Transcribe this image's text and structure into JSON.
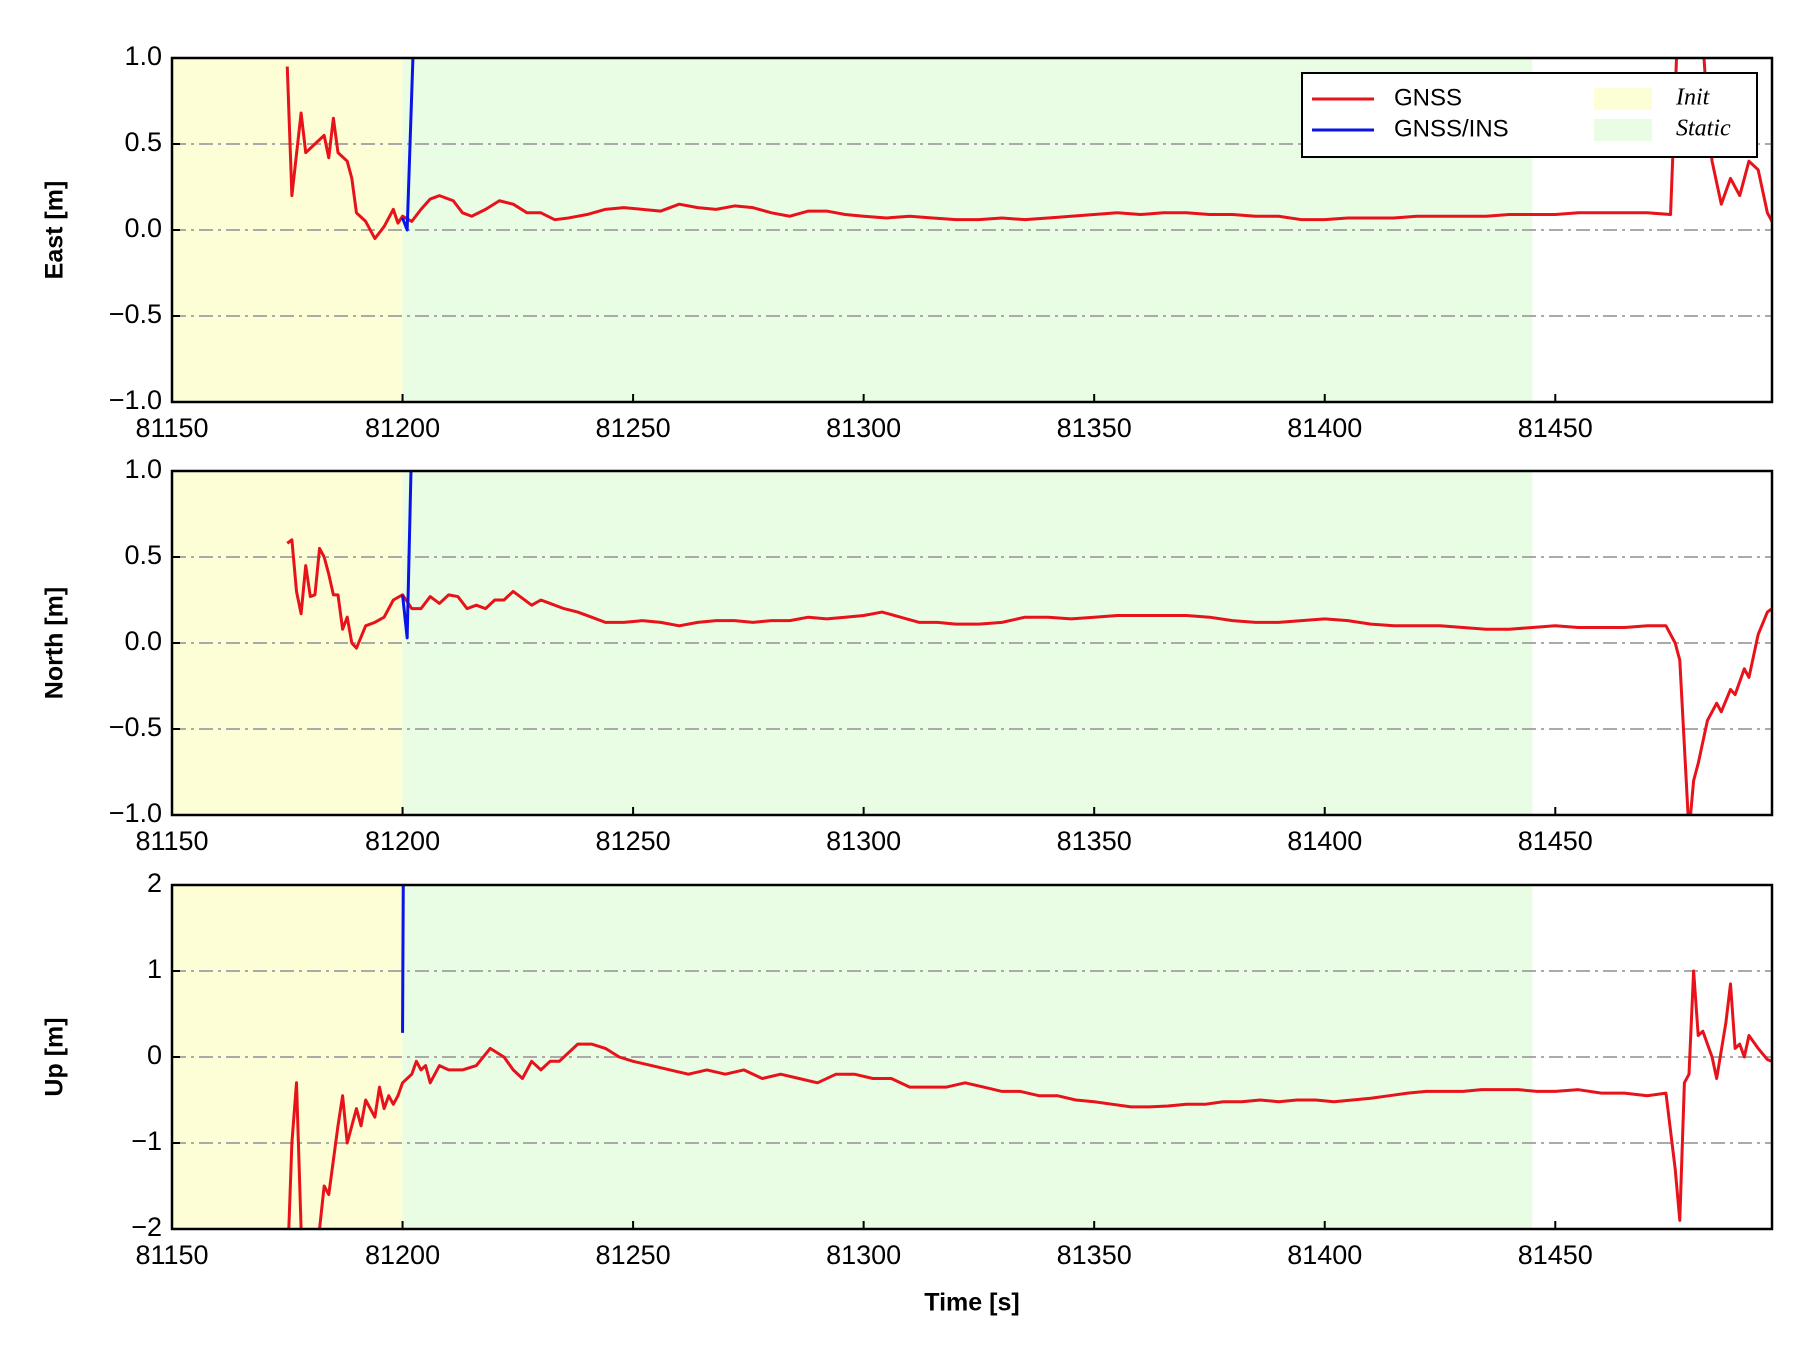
{
  "chart_data": [
    {
      "type": "line",
      "ylabel": "East [m]",
      "legend": "upper right",
      "xlim": [
        81150,
        81497
      ],
      "xticks": [
        81150,
        81200,
        81250,
        81300,
        81350,
        81400,
        81450
      ],
      "ylim": [
        -1,
        1
      ],
      "yticks": [
        {
          "value": -1,
          "label": "−1.0"
        },
        {
          "value": -0.5,
          "label": "−0.5"
        },
        {
          "value": 0,
          "label": "0.0"
        },
        {
          "value": 0.5,
          "label": "0.5"
        },
        {
          "value": 1,
          "label": "1.0"
        }
      ],
      "grid": true,
      "regions": [
        {
          "name": "Init",
          "color": "#fdfdd6",
          "x": [
            81150,
            81200
          ]
        },
        {
          "name": "Static",
          "color": "#e8fde4",
          "x": [
            81200,
            81445
          ]
        }
      ],
      "series": [
        {
          "name": "GNSS",
          "color": "#e8121a",
          "x": [
            81175,
            81176,
            81178,
            81179,
            81181,
            81183,
            81184,
            81185,
            81186,
            81188,
            81189,
            81190,
            81192,
            81194,
            81196,
            81198,
            81199,
            81200,
            81202,
            81204,
            81206,
            81208,
            81211,
            81213,
            81215,
            81218,
            81221,
            81224,
            81227,
            81230,
            81233,
            81236,
            81240,
            81244,
            81248,
            81252,
            81256,
            81260,
            81264,
            81268,
            81272,
            81276,
            81280,
            81284,
            81288,
            81292,
            81296,
            81300,
            81305,
            81310,
            81315,
            81320,
            81325,
            81330,
            81335,
            81340,
            81345,
            81350,
            81355,
            81360,
            81365,
            81370,
            81375,
            81380,
            81385,
            81390,
            81395,
            81400,
            81405,
            81410,
            81415,
            81420,
            81425,
            81430,
            81435,
            81440,
            81445,
            81450,
            81455,
            81460,
            81465,
            81470,
            81475,
            81477,
            81479,
            81481,
            81483,
            81484,
            81486,
            81488,
            81490,
            81492,
            81494,
            81496,
            81497
          ],
          "values": [
            0.95,
            0.2,
            0.68,
            0.45,
            0.5,
            0.55,
            0.42,
            0.65,
            0.45,
            0.4,
            0.3,
            0.1,
            0.05,
            -0.05,
            0.02,
            0.12,
            0.04,
            0.08,
            0.05,
            0.12,
            0.18,
            0.2,
            0.17,
            0.1,
            0.08,
            0.12,
            0.17,
            0.15,
            0.1,
            0.1,
            0.06,
            0.07,
            0.09,
            0.12,
            0.13,
            0.12,
            0.11,
            0.15,
            0.13,
            0.12,
            0.14,
            0.13,
            0.1,
            0.08,
            0.11,
            0.11,
            0.09,
            0.08,
            0.07,
            0.08,
            0.07,
            0.06,
            0.06,
            0.07,
            0.06,
            0.07,
            0.08,
            0.09,
            0.1,
            0.09,
            0.1,
            0.1,
            0.09,
            0.09,
            0.08,
            0.08,
            0.06,
            0.06,
            0.07,
            0.07,
            0.07,
            0.08,
            0.08,
            0.08,
            0.08,
            0.09,
            0.09,
            0.09,
            0.1,
            0.1,
            0.1,
            0.1,
            0.09,
            1.5,
            1.2,
            1.5,
            0.7,
            0.4,
            0.15,
            0.3,
            0.2,
            0.4,
            0.35,
            0.1,
            0.05
          ]
        },
        {
          "name": "GNSS/INS",
          "color": "#0a14e6",
          "x": [
            81200,
            81201,
            81202.5
          ],
          "values": [
            0.07,
            0.0,
            1.2
          ]
        }
      ]
    },
    {
      "type": "line",
      "ylabel": "North [m]",
      "xlim": [
        81150,
        81497
      ],
      "xticks": [
        81150,
        81200,
        81250,
        81300,
        81350,
        81400,
        81450
      ],
      "ylim": [
        -1,
        1
      ],
      "yticks": [
        {
          "value": -1,
          "label": "−1.0"
        },
        {
          "value": -0.5,
          "label": "−0.5"
        },
        {
          "value": 0,
          "label": "0.0"
        },
        {
          "value": 0.5,
          "label": "0.5"
        },
        {
          "value": 1,
          "label": "1.0"
        }
      ],
      "grid": true,
      "regions": [
        {
          "color": "#fdfdd6",
          "x": [
            81150,
            81200
          ]
        },
        {
          "color": "#e8fde4",
          "x": [
            81200,
            81445
          ]
        }
      ],
      "series": [
        {
          "color": "#e8121a",
          "x": [
            81175,
            81176,
            81177,
            81178,
            81179,
            81180,
            81181,
            81182,
            81183,
            81184,
            81185,
            81186,
            81187,
            81188,
            81189,
            81190,
            81192,
            81194,
            81196,
            81198,
            81200,
            81202,
            81204,
            81206,
            81208,
            81210,
            81212,
            81214,
            81216,
            81218,
            81220,
            81222,
            81224,
            81226,
            81228,
            81230,
            81232,
            81235,
            81238,
            81241,
            81244,
            81248,
            81252,
            81256,
            81260,
            81264,
            81268,
            81272,
            81276,
            81280,
            81284,
            81288,
            81292,
            81296,
            81300,
            81304,
            81308,
            81312,
            81316,
            81320,
            81325,
            81330,
            81335,
            81340,
            81345,
            81350,
            81355,
            81360,
            81365,
            81370,
            81375,
            81380,
            81385,
            81390,
            81395,
            81400,
            81405,
            81410,
            81415,
            81420,
            81425,
            81430,
            81435,
            81440,
            81445,
            81450,
            81455,
            81460,
            81465,
            81470,
            81474,
            81476,
            81477,
            81478,
            81479,
            81480,
            81481,
            81483,
            81485,
            81486,
            81488,
            81489,
            81491,
            81492,
            81494,
            81496,
            81497
          ],
          "values": [
            0.58,
            0.6,
            0.3,
            0.17,
            0.45,
            0.27,
            0.28,
            0.55,
            0.5,
            0.4,
            0.28,
            0.28,
            0.08,
            0.15,
            0.0,
            -0.03,
            0.1,
            0.12,
            0.15,
            0.25,
            0.28,
            0.2,
            0.2,
            0.27,
            0.23,
            0.28,
            0.27,
            0.2,
            0.22,
            0.2,
            0.25,
            0.25,
            0.3,
            0.26,
            0.22,
            0.25,
            0.23,
            0.2,
            0.18,
            0.15,
            0.12,
            0.12,
            0.13,
            0.12,
            0.1,
            0.12,
            0.13,
            0.13,
            0.12,
            0.13,
            0.13,
            0.15,
            0.14,
            0.15,
            0.16,
            0.18,
            0.15,
            0.12,
            0.12,
            0.11,
            0.11,
            0.12,
            0.15,
            0.15,
            0.14,
            0.15,
            0.16,
            0.16,
            0.16,
            0.16,
            0.15,
            0.13,
            0.12,
            0.12,
            0.13,
            0.14,
            0.13,
            0.11,
            0.1,
            0.1,
            0.1,
            0.09,
            0.08,
            0.08,
            0.09,
            0.1,
            0.09,
            0.09,
            0.09,
            0.1,
            0.1,
            0.0,
            -0.1,
            -0.6,
            -1.1,
            -0.8,
            -0.7,
            -0.45,
            -0.35,
            -0.4,
            -0.27,
            -0.3,
            -0.15,
            -0.2,
            0.05,
            0.18,
            0.2
          ]
        },
        {
          "color": "#0a14e6",
          "x": [
            81200,
            81201,
            81202
          ],
          "values": [
            0.28,
            0.03,
            1.2
          ]
        }
      ]
    },
    {
      "type": "line",
      "ylabel": "Up [m]",
      "xlabel": "Time [s]",
      "xlim": [
        81150,
        81497
      ],
      "xticks": [
        81150,
        81200,
        81250,
        81300,
        81350,
        81400,
        81450
      ],
      "ylim": [
        -2,
        2
      ],
      "yticks": [
        {
          "value": -2,
          "label": "−2"
        },
        {
          "value": -1,
          "label": "−1"
        },
        0,
        1,
        2
      ],
      "grid": true,
      "regions": [
        {
          "color": "#fdfdd6",
          "x": [
            81150,
            81200
          ]
        },
        {
          "color": "#e8fde4",
          "x": [
            81200,
            81445
          ]
        }
      ],
      "series": [
        {
          "color": "#e8121a",
          "x": [
            81175,
            81176,
            81177,
            81178,
            81179,
            81181,
            81182,
            81183,
            81184,
            81186,
            81187,
            81188,
            81190,
            81191,
            81192,
            81194,
            81195,
            81196,
            81197,
            81198,
            81199,
            81200,
            81202,
            81203,
            81204,
            81205,
            81206,
            81208,
            81210,
            81213,
            81216,
            81219,
            81222,
            81224,
            81226,
            81228,
            81230,
            81232,
            81234,
            81236,
            81238,
            81241,
            81244,
            81247,
            81250,
            81254,
            81258,
            81262,
            81266,
            81270,
            81274,
            81278,
            81282,
            81286,
            81290,
            81294,
            81298,
            81302,
            81306,
            81310,
            81314,
            81318,
            81322,
            81326,
            81330,
            81334,
            81338,
            81342,
            81346,
            81350,
            81354,
            81358,
            81362,
            81366,
            81370,
            81374,
            81378,
            81382,
            81386,
            81390,
            81394,
            81398,
            81402,
            81406,
            81410,
            81414,
            81418,
            81422,
            81426,
            81430,
            81434,
            81438,
            81442,
            81446,
            81450,
            81455,
            81460,
            81465,
            81470,
            81474,
            81476,
            81477,
            81478,
            81479,
            81480,
            81481,
            81482,
            81484,
            81485,
            81487,
            81488,
            81489,
            81490,
            81491,
            81492,
            81494,
            81496,
            81497
          ],
          "values": [
            -2.5,
            -1.0,
            -0.3,
            -2.0,
            -2.5,
            -2.4,
            -2.0,
            -1.5,
            -1.6,
            -0.8,
            -0.45,
            -1.0,
            -0.6,
            -0.8,
            -0.5,
            -0.7,
            -0.35,
            -0.6,
            -0.45,
            -0.55,
            -0.45,
            -0.3,
            -0.2,
            -0.05,
            -0.15,
            -0.1,
            -0.3,
            -0.1,
            -0.15,
            -0.15,
            -0.1,
            0.1,
            0.0,
            -0.15,
            -0.25,
            -0.05,
            -0.15,
            -0.05,
            -0.05,
            0.05,
            0.15,
            0.15,
            0.1,
            0.0,
            -0.05,
            -0.1,
            -0.15,
            -0.2,
            -0.15,
            -0.2,
            -0.15,
            -0.25,
            -0.2,
            -0.25,
            -0.3,
            -0.2,
            -0.2,
            -0.25,
            -0.25,
            -0.35,
            -0.35,
            -0.35,
            -0.3,
            -0.35,
            -0.4,
            -0.4,
            -0.45,
            -0.45,
            -0.5,
            -0.52,
            -0.55,
            -0.58,
            -0.58,
            -0.57,
            -0.55,
            -0.55,
            -0.52,
            -0.52,
            -0.5,
            -0.52,
            -0.5,
            -0.5,
            -0.52,
            -0.5,
            -0.48,
            -0.45,
            -0.42,
            -0.4,
            -0.4,
            -0.4,
            -0.38,
            -0.38,
            -0.38,
            -0.4,
            -0.4,
            -0.38,
            -0.42,
            -0.42,
            -0.45,
            -0.42,
            -1.3,
            -1.9,
            -0.3,
            -0.2,
            1.0,
            0.25,
            0.3,
            0.0,
            -0.25,
            0.4,
            0.85,
            0.1,
            0.15,
            0.0,
            0.25,
            0.1,
            -0.03,
            -0.05
          ]
        },
        {
          "color": "#0a14e6",
          "x": [
            81200,
            81200.2
          ],
          "values": [
            0.28,
            2.5
          ]
        }
      ]
    }
  ]
}
